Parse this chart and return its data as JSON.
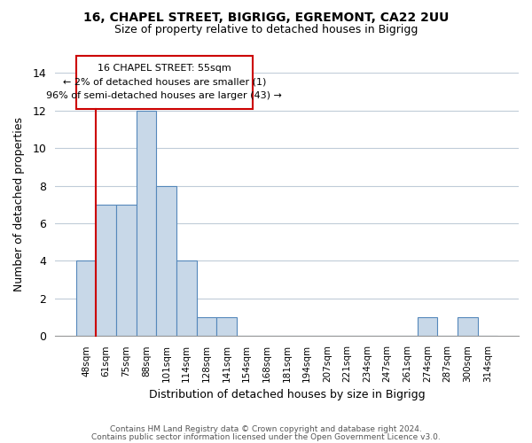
{
  "title1": "16, CHAPEL STREET, BIGRIGG, EGREMONT, CA22 2UU",
  "title2": "Size of property relative to detached houses in Bigrigg",
  "xlabel": "Distribution of detached houses by size in Bigrigg",
  "ylabel": "Number of detached properties",
  "bar_color": "#c8d8e8",
  "bar_edge_color": "#5588bb",
  "categories": [
    "48sqm",
    "61sqm",
    "75sqm",
    "88sqm",
    "101sqm",
    "114sqm",
    "128sqm",
    "141sqm",
    "154sqm",
    "168sqm",
    "181sqm",
    "194sqm",
    "207sqm",
    "221sqm",
    "234sqm",
    "247sqm",
    "261sqm",
    "274sqm",
    "287sqm",
    "300sqm",
    "314sqm"
  ],
  "values": [
    4,
    7,
    7,
    12,
    8,
    4,
    1,
    1,
    0,
    0,
    0,
    0,
    0,
    0,
    0,
    0,
    0,
    1,
    0,
    1,
    0
  ],
  "ylim": [
    0,
    14
  ],
  "yticks": [
    0,
    2,
    4,
    6,
    8,
    10,
    12,
    14
  ],
  "annotation_line1": "16 CHAPEL STREET: 55sqm",
  "annotation_line2": "← 2% of detached houses are smaller (1)",
  "annotation_line3": "96% of semi-detached houses are larger (43) →",
  "footnote1": "Contains HM Land Registry data © Crown copyright and database right 2024.",
  "footnote2": "Contains public sector information licensed under the Open Government Licence v3.0.",
  "background_color": "#ffffff",
  "grid_color": "#c0ccd8",
  "red_color": "#cc0000"
}
